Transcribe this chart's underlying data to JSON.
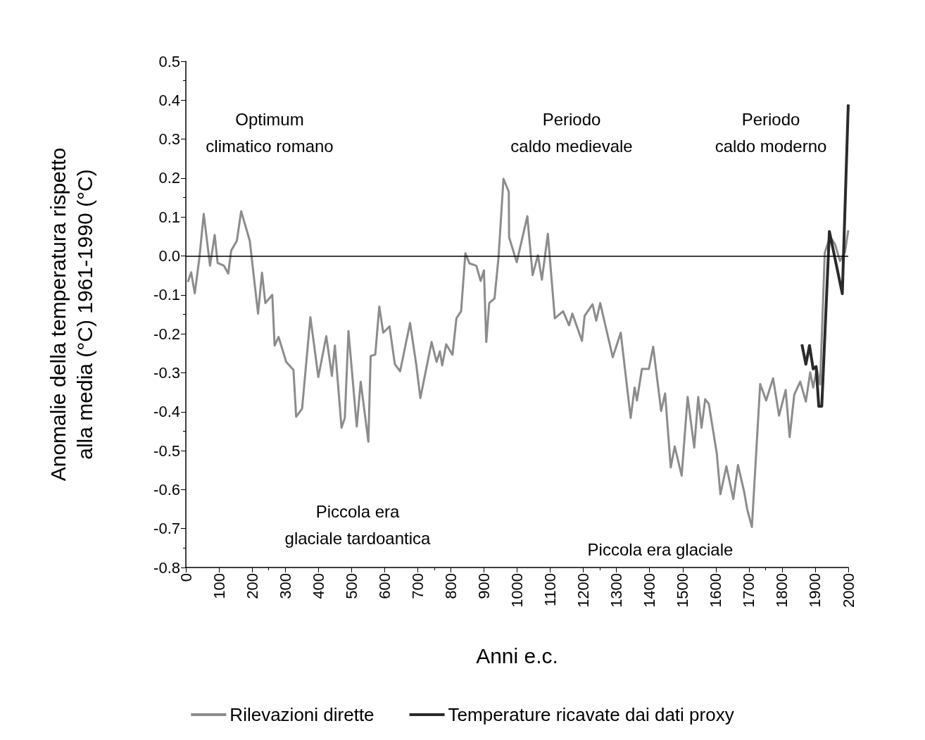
{
  "chart_data": {
    "type": "line",
    "xlabel": "Anni e.c.",
    "ylabel": "Anomalie della temperatura rispetto\nalla media (°C) 1961-1990 (°C)",
    "xlim": [
      0,
      2000
    ],
    "xticks": [
      0,
      100,
      200,
      300,
      400,
      500,
      600,
      700,
      800,
      900,
      1000,
      1100,
      1200,
      1300,
      1400,
      1500,
      1600,
      1700,
      1800,
      1900,
      2000
    ],
    "ylim": [
      -0.8,
      0.5
    ],
    "yticks": [
      {
        "value": -0.8,
        "label": "-0.8"
      },
      {
        "value": -0.7,
        "label": "-0.7"
      },
      {
        "value": -0.6,
        "label": "-0.6"
      },
      {
        "value": -0.5,
        "label": "-0.5"
      },
      {
        "value": -0.4,
        "label": "-0.4"
      },
      {
        "value": -0.3,
        "label": "-0.3"
      },
      {
        "value": -0.2,
        "label": "-0.2"
      },
      {
        "value": -0.1,
        "label": "-0.1"
      },
      {
        "value": 0,
        "label": "0.0"
      },
      {
        "value": 0.1,
        "label": "0.1"
      },
      {
        "value": 0.2,
        "label": "0.2"
      },
      {
        "value": 0.3,
        "label": "0.3"
      },
      {
        "value": 0.4,
        "label": "0.4"
      },
      {
        "value": 0.5,
        "label": "0.5"
      }
    ],
    "grid": false,
    "legend": "bottom",
    "marker": "none",
    "line_style": "solid",
    "ref_lines": [
      {
        "axis": "y",
        "value": 0,
        "color": "#000000"
      }
    ],
    "annotations": [
      "Optimum\nclimatico romano",
      "Periodo\ncaldo medievale",
      "Periodo\ncaldo moderno",
      "Piccola era\nglaciale tardoantica",
      "Piccola era glaciale"
    ],
    "series": [
      {
        "name": "Rilevazioni dirette",
        "color": "#8c8c8c",
        "x": [
          6,
          16,
          27,
          41,
          54,
          73,
          87,
          96,
          115,
          128,
          137,
          154,
          167,
          193,
          218,
          230,
          240,
          261,
          268,
          280,
          303,
          325,
          333,
          351,
          376,
          400,
          424,
          441,
          450,
          470,
          480,
          491,
          516,
          528,
          551,
          558,
          572,
          584,
          596,
          615,
          631,
          647,
          677,
          696,
          708,
          725,
          742,
          757,
          767,
          774,
          786,
          805,
          817,
          831,
          844,
          856,
          877,
          890,
          900,
          907,
          916,
          932,
          944,
          959,
          975,
          976,
          999,
          1031,
          1047,
          1063,
          1075,
          1093,
          1114,
          1139,
          1157,
          1167,
          1196,
          1204,
          1228,
          1239,
          1251,
          1289,
          1313,
          1343,
          1355,
          1362,
          1377,
          1398,
          1411,
          1435,
          1447,
          1464,
          1476,
          1497,
          1515,
          1535,
          1547,
          1557,
          1568,
          1579,
          1603,
          1614,
          1632,
          1653,
          1667,
          1685,
          1695,
          1709,
          1734,
          1752,
          1773,
          1791,
          1811,
          1823,
          1837,
          1855,
          1872,
          1885,
          1894,
          1905,
          1915,
          1929,
          1945,
          1960,
          1975,
          1990,
          2000
        ],
        "values": [
          -0.067,
          -0.042,
          -0.096,
          -0.004,
          0.108,
          -0.025,
          0.054,
          -0.018,
          -0.025,
          -0.045,
          0.014,
          0.039,
          0.115,
          0.039,
          -0.148,
          -0.043,
          -0.121,
          -0.1,
          -0.23,
          -0.208,
          -0.272,
          -0.293,
          -0.413,
          -0.392,
          -0.157,
          -0.311,
          -0.206,
          -0.308,
          -0.23,
          -0.441,
          -0.416,
          -0.193,
          -0.438,
          -0.323,
          -0.477,
          -0.257,
          -0.253,
          -0.13,
          -0.197,
          -0.181,
          -0.278,
          -0.296,
          -0.172,
          -0.281,
          -0.365,
          -0.293,
          -0.221,
          -0.272,
          -0.245,
          -0.281,
          -0.227,
          -0.254,
          -0.16,
          -0.142,
          0.007,
          -0.019,
          -0.025,
          -0.064,
          -0.037,
          -0.221,
          -0.121,
          -0.109,
          -0.004,
          0.198,
          0.165,
          0.048,
          -0.016,
          0.102,
          -0.049,
          0.002,
          -0.061,
          0.057,
          -0.16,
          -0.142,
          -0.178,
          -0.148,
          -0.218,
          -0.154,
          -0.124,
          -0.166,
          -0.121,
          -0.26,
          -0.197,
          -0.416,
          -0.338,
          -0.371,
          -0.29,
          -0.29,
          -0.233,
          -0.398,
          -0.353,
          -0.543,
          -0.489,
          -0.564,
          -0.362,
          -0.492,
          -0.362,
          -0.441,
          -0.368,
          -0.38,
          -0.507,
          -0.612,
          -0.54,
          -0.624,
          -0.537,
          -0.603,
          -0.651,
          -0.696,
          -0.329,
          -0.371,
          -0.314,
          -0.41,
          -0.344,
          -0.465,
          -0.356,
          -0.323,
          -0.374,
          -0.299,
          -0.338,
          -0.29,
          -0.33,
          0.008,
          0.05,
          0.03,
          -0.013,
          0.01,
          0.066
        ]
      },
      {
        "name": "Temperature ricavate dai dati proxy",
        "color": "#2a2a2a",
        "x": [
          1860,
          1872,
          1883,
          1894,
          1903,
          1911,
          1920,
          1943,
          1982,
          2000
        ],
        "values": [
          -0.227,
          -0.278,
          -0.23,
          -0.29,
          -0.284,
          -0.386,
          -0.386,
          0.063,
          -0.097,
          0.389
        ]
      }
    ]
  }
}
